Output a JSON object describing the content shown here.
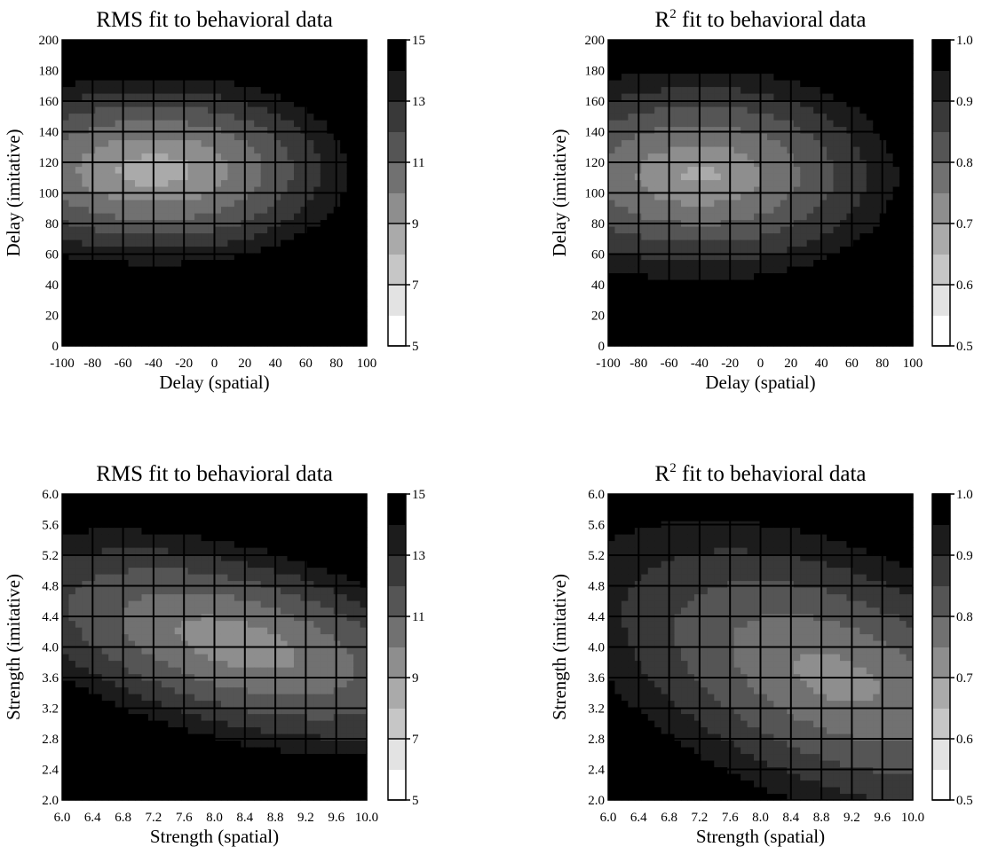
{
  "panel_layout": [
    "top-left",
    "top-right",
    "bottom-left",
    "bottom-right"
  ],
  "gray_scale": {
    "low_value_color": "#ffffff",
    "high_value_color": "#000000",
    "levels": 10,
    "grid_color": "#000000"
  },
  "chart_data": [
    {
      "type": "heatmap",
      "title": "RMS fit to behavioral data",
      "title_sup": "",
      "title_rest": "",
      "xlabel": "Delay (spatial)",
      "ylabel": "Delay (imitative)",
      "xticks": [
        "-100",
        "-80",
        "-60",
        "-40",
        "-20",
        "0",
        "20",
        "40",
        "60",
        "80",
        "100"
      ],
      "yticks": [
        "0",
        "20",
        "40",
        "60",
        "80",
        "100",
        "120",
        "140",
        "160",
        "180",
        "200"
      ],
      "xlim": [
        -100,
        100
      ],
      "ylim": [
        0,
        200
      ],
      "grid": true,
      "colorbar": {
        "ticks": [
          "5",
          "7",
          "9",
          "11",
          "13",
          "15"
        ],
        "min": 5,
        "max": 15,
        "levels": 10
      },
      "field": {
        "kind": "delay",
        "best_x": -40,
        "best_y": 115,
        "spread_x": 145,
        "spread_y": 70,
        "best": 8.4,
        "worst": 15,
        "power": 1.2
      }
    },
    {
      "type": "heatmap",
      "title": "R",
      "title_sup": "2",
      "title_rest": " fit to behavioral data",
      "xlabel": "Delay (spatial)",
      "ylabel": "Delay (imitative)",
      "xticks": [
        "-100",
        "-80",
        "-60",
        "-40",
        "-20",
        "0",
        "20",
        "40",
        "60",
        "80",
        "100"
      ],
      "yticks": [
        "0",
        "20",
        "40",
        "60",
        "80",
        "100",
        "120",
        "140",
        "160",
        "180",
        "200"
      ],
      "xlim": [
        -100,
        100
      ],
      "ylim": [
        0,
        200
      ],
      "grid": true,
      "colorbar": {
        "ticks": [
          "0.5",
          "0.6",
          "0.7",
          "0.8",
          "0.9",
          "1.0"
        ],
        "min": 0.5,
        "max": 1.0,
        "levels": 10
      },
      "field": {
        "kind": "delay",
        "best_x": -40,
        "best_y": 112,
        "spread_x": 150,
        "spread_y": 80,
        "best": 0.815,
        "worst": 0.5,
        "power": 1.1
      }
    },
    {
      "type": "heatmap",
      "title": "RMS fit to behavioral data",
      "title_sup": "",
      "title_rest": "",
      "xlabel": "Strength (spatial)",
      "ylabel": "Strength (imitative)",
      "xticks": [
        "6.0",
        "6.4",
        "6.8",
        "7.2",
        "7.6",
        "8.0",
        "8.4",
        "8.8",
        "9.2",
        "9.6",
        "10.0"
      ],
      "yticks": [
        "2.0",
        "2.4",
        "2.8",
        "3.2",
        "3.6",
        "4.0",
        "4.4",
        "4.8",
        "5.2",
        "5.6",
        "6.0"
      ],
      "xlim": [
        6.0,
        10.0
      ],
      "ylim": [
        2.0,
        6.0
      ],
      "grid": true,
      "colorbar": {
        "ticks": [
          "5",
          "7",
          "9",
          "11",
          "13",
          "15"
        ],
        "min": 5,
        "max": 15,
        "levels": 10
      },
      "field": {
        "kind": "strength",
        "best_x": 8.3,
        "best_y": 4.05,
        "spread_x": 3.3,
        "spread_y": 1.45,
        "best": 9.3,
        "worst": 14.5,
        "power": 1.3
      }
    },
    {
      "type": "heatmap",
      "title": "R",
      "title_sup": "2",
      "title_rest": " fit to behavioral data",
      "xlabel": "Strength (spatial)",
      "ylabel": "Strength (imitative)",
      "xticks": [
        "6.0",
        "6.4",
        "6.8",
        "7.2",
        "7.6",
        "8.0",
        "8.4",
        "8.8",
        "9.2",
        "9.6",
        "10.0"
      ],
      "yticks": [
        "2.0",
        "2.4",
        "2.8",
        "3.2",
        "3.6",
        "4.0",
        "4.4",
        "4.8",
        "5.2",
        "5.6",
        "6.0"
      ],
      "xlim": [
        6.0,
        10.0
      ],
      "ylim": [
        2.0,
        6.0
      ],
      "grid": true,
      "colorbar": {
        "ticks": [
          "0.5",
          "0.6",
          "0.7",
          "0.8",
          "0.9",
          "1.0"
        ],
        "min": 0.5,
        "max": 1.0,
        "levels": 10
      },
      "field": {
        "kind": "strength",
        "best_x": 9.0,
        "best_y": 3.6,
        "spread_x": 3.7,
        "spread_y": 2.2,
        "best": 0.775,
        "worst": 0.5,
        "power": 1.2
      }
    }
  ]
}
